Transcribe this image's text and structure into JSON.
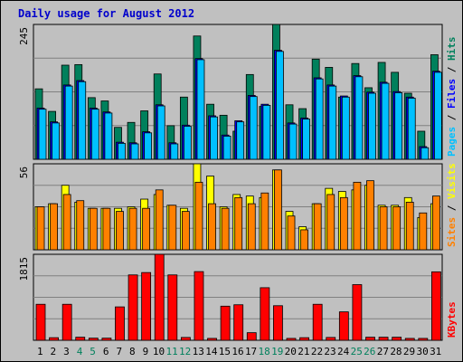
{
  "colors": {
    "background": "#c0c0c0",
    "title": "#0000cc",
    "hits": "#00805c",
    "files": "#0000ff",
    "pages": "#00c0ff",
    "visits": "#ffff00",
    "sites": "#ff8000",
    "kbytes": "#ff0000",
    "weekend_day_label": "#00805c"
  },
  "chart_data": [
    {
      "type": "bar",
      "title": "Daily usage for August 2012",
      "ylabel_parts": [
        "Pages",
        "Files",
        "Hits"
      ],
      "ymax_label": "245",
      "ylim": [
        0,
        245
      ],
      "categories": [
        "1",
        "2",
        "3",
        "4",
        "5",
        "6",
        "7",
        "8",
        "9",
        "10",
        "11",
        "12",
        "13",
        "14",
        "15",
        "16",
        "17",
        "18",
        "19",
        "20",
        "21",
        "22",
        "23",
        "24",
        "25",
        "26",
        "27",
        "28",
        "29",
        "30",
        "31"
      ],
      "weekend_days": [
        "4",
        "5",
        "11",
        "12",
        "18",
        "19",
        "25",
        "26"
      ],
      "series": [
        {
          "name": "Hits",
          "values": [
            128,
            87,
            171,
            172,
            112,
            106,
            58,
            67,
            88,
            155,
            61,
            113,
            224,
            100,
            80,
            51,
            154,
            96,
            245,
            99,
            92,
            182,
            167,
            113,
            174,
            130,
            176,
            158,
            120,
            51,
            190
          ]
        },
        {
          "name": "Files",
          "values": [
            93,
            68,
            135,
            143,
            93,
            86,
            31,
            30,
            50,
            99,
            30,
            62,
            183,
            79,
            44,
            70,
            116,
            100,
            198,
            66,
            75,
            148,
            135,
            115,
            152,
            122,
            140,
            123,
            113,
            23,
            160
          ]
        },
        {
          "name": "Pages",
          "values": [
            91,
            66,
            133,
            141,
            91,
            84,
            29,
            28,
            48,
            97,
            28,
            60,
            181,
            77,
            42,
            68,
            114,
            98,
            196,
            64,
            73,
            146,
            133,
            113,
            150,
            120,
            138,
            121,
            111,
            21,
            158
          ]
        }
      ]
    },
    {
      "type": "bar",
      "ylabel_parts": [
        "Sites",
        "Visits"
      ],
      "ymax_label": "56",
      "ylim": [
        0,
        56
      ],
      "categories": [
        "1",
        "2",
        "3",
        "4",
        "5",
        "6",
        "7",
        "8",
        "9",
        "10",
        "11",
        "12",
        "13",
        "14",
        "15",
        "16",
        "17",
        "18",
        "19",
        "20",
        "21",
        "22",
        "23",
        "24",
        "25",
        "26",
        "27",
        "28",
        "29",
        "30",
        "31"
      ],
      "series": [
        {
          "name": "Visits",
          "values": [
            28,
            30,
            42,
            31,
            27,
            27,
            27,
            28,
            33,
            36,
            29,
            27,
            56,
            48,
            28,
            36,
            35,
            34,
            52,
            25,
            15,
            30,
            40,
            38,
            39,
            42,
            29,
            29,
            34,
            21,
            30
          ]
        },
        {
          "name": "Sites",
          "values": [
            28,
            30,
            36,
            32,
            27,
            27,
            25,
            27,
            27,
            39,
            29,
            25,
            44,
            30,
            27,
            34,
            30,
            37,
            52,
            22,
            13,
            30,
            36,
            34,
            44,
            45,
            28,
            28,
            31,
            24,
            35
          ]
        }
      ]
    },
    {
      "type": "bar",
      "ylabel_parts": [
        "KBytes"
      ],
      "ymax_label": "1815",
      "ylim": [
        0,
        1815
      ],
      "categories": [
        "1",
        "2",
        "3",
        "4",
        "5",
        "6",
        "7",
        "8",
        "9",
        "10",
        "11",
        "12",
        "13",
        "14",
        "15",
        "16",
        "17",
        "18",
        "19",
        "20",
        "21",
        "22",
        "23",
        "24",
        "25",
        "26",
        "27",
        "28",
        "29",
        "30",
        "31"
      ],
      "series": [
        {
          "name": "KBytes",
          "values": [
            760,
            55,
            760,
            65,
            45,
            45,
            705,
            1380,
            1430,
            1815,
            1380,
            60,
            1450,
            40,
            720,
            750,
            160,
            1110,
            730,
            40,
            55,
            760,
            60,
            600,
            1175,
            65,
            65,
            65,
            40,
            40,
            1445
          ]
        }
      ]
    }
  ]
}
